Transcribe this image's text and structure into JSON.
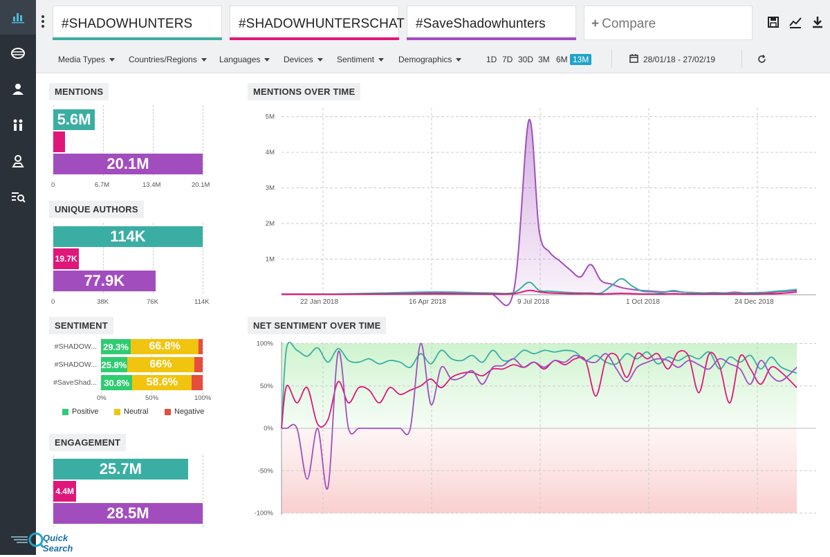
{
  "sidebar": {
    "icons": [
      "bar-chart-icon",
      "brain-icon",
      "user-icon",
      "people-icon",
      "location-user-icon",
      "list-search-icon"
    ]
  },
  "terms": [
    {
      "label": "#SHADOWHUNTERS",
      "color": "#3aaea3"
    },
    {
      "label": "#SHADOWHUNTERSCHAT",
      "color": "#e0177a"
    },
    {
      "label": "#SaveShadowhunters",
      "color": "#a24dbe"
    }
  ],
  "compare_label": "Compare",
  "filters": [
    "Media Types",
    "Countries/Regions",
    "Languages",
    "Devices",
    "Sentiment",
    "Demographics"
  ],
  "periods": [
    "1D",
    "7D",
    "30D",
    "3M",
    "6M",
    "13M"
  ],
  "active_period": "13M",
  "date_range": "28/01/18 - 27/02/19",
  "sections": {
    "mentions": "MENTIONS",
    "unique_authors": "UNIQUE AUTHORS",
    "sentiment": "SENTIMENT",
    "engagement": "ENGAGEMENT",
    "mentions_over_time": "MENTIONS OVER TIME",
    "net_sentiment": "NET SENTIMENT OVER TIME"
  },
  "mentions": {
    "bars": [
      {
        "label": "5.6M",
        "value": 5.6
      },
      {
        "label": "",
        "value": 1.6
      },
      {
        "label": "20.1M",
        "value": 20.1
      }
    ],
    "max": 20.1,
    "ticks": [
      "0",
      "6.7M",
      "13.4M",
      "20.1M"
    ]
  },
  "unique_authors": {
    "bars": [
      {
        "label": "114K",
        "value": 114
      },
      {
        "label": "19.7K",
        "value": 19.7
      },
      {
        "label": "77.9K",
        "value": 77.9
      }
    ],
    "max": 114,
    "ticks": [
      "0",
      "38K",
      "76K",
      "114K"
    ]
  },
  "sentiment": {
    "rows": [
      {
        "label": "#SHADOW...",
        "positive": 29.3,
        "neutral": 66.8,
        "negative": 3.9,
        "pos_label": "29.3%",
        "neu_label": "66.8%"
      },
      {
        "label": "#SHADOW...",
        "positive": 25.8,
        "neutral": 66,
        "negative": 8.2,
        "pos_label": "25.8%",
        "neu_label": "66%"
      },
      {
        "label": "#SaveShad...",
        "positive": 30.8,
        "neutral": 58.6,
        "negative": 10.6,
        "pos_label": "30.8%",
        "neu_label": "58.6%"
      }
    ],
    "ticks": [
      "0%",
      "50%",
      "100%"
    ],
    "legend": [
      {
        "label": "Positive",
        "color": "#2ecc71"
      },
      {
        "label": "Neutral",
        "color": "#f1c40f"
      },
      {
        "label": "Negative",
        "color": "#e74c3c"
      }
    ]
  },
  "engagement": {
    "bars": [
      {
        "label": "25.7M",
        "value": 25.7
      },
      {
        "label": "4.4M",
        "value": 4.4
      },
      {
        "label": "28.5M",
        "value": 28.5
      }
    ],
    "max": 28.5
  },
  "chart_data": [
    {
      "type": "area",
      "title": "MENTIONS OVER TIME",
      "y_ticks": [
        "1M",
        "2M",
        "3M",
        "4M",
        "5M"
      ],
      "x_ticks": [
        "22 Jan 2018",
        "16 Apr 2018",
        "9 Jul 2018",
        "1 Oct 2018",
        "24 Dec 2018"
      ],
      "ylim": [
        0,
        5
      ],
      "x": [
        0,
        10,
        20,
        30,
        40,
        45,
        48,
        50,
        52,
        54,
        56,
        58,
        60,
        62,
        64,
        66,
        68,
        70,
        72,
        74,
        76,
        78,
        80,
        82,
        84,
        86,
        88,
        90,
        92,
        94,
        96,
        98,
        100
      ],
      "series": [
        {
          "name": "#SaveShadowhunters",
          "color": "#a24dbe",
          "values": [
            0.02,
            0.02,
            0.03,
            0.05,
            0.05,
            0.06,
            4.9,
            1.8,
            1.2,
            0.95,
            0.7,
            0.5,
            0.85,
            0.4,
            0.3,
            0.2,
            0.15,
            0.12,
            0.1,
            0.08,
            0.1,
            0.07,
            0.06,
            0.05,
            0.06,
            0.05,
            0.07,
            0.05,
            0.06,
            0.05,
            0.08,
            0.1,
            0.12
          ]
        },
        {
          "name": "#SHADOWHUNTERS",
          "color": "#3aaea3",
          "values": [
            0.01,
            0.02,
            0.05,
            0.08,
            0.05,
            0.06,
            0.35,
            0.12,
            0.1,
            0.08,
            0.06,
            0.05,
            0.05,
            0.05,
            0.25,
            0.45,
            0.25,
            0.1,
            0.08,
            0.06,
            0.12,
            0.07,
            0.06,
            0.05,
            0.05,
            0.05,
            0.04,
            0.05,
            0.06,
            0.07,
            0.1,
            0.12,
            0.15
          ]
        },
        {
          "name": "#SHADOWHUNTERSCHAT",
          "color": "#e0177a",
          "values": [
            0.01,
            0.01,
            0.02,
            0.03,
            0.02,
            0.03,
            0.12,
            0.08,
            0.05,
            0.04,
            0.03,
            0.03,
            0.03,
            0.02,
            0.03,
            0.04,
            0.03,
            0.02,
            0.02,
            0.02,
            0.03,
            0.02,
            0.02,
            0.02,
            0.02,
            0.02,
            0.02,
            0.02,
            0.02,
            0.03,
            0.03,
            0.05,
            0.08
          ]
        }
      ]
    },
    {
      "type": "line",
      "title": "NET SENTIMENT OVER TIME",
      "y_ticks": [
        "100%",
        "50%",
        "0%",
        "-50%",
        "-100%"
      ],
      "ylim": [
        -100,
        100
      ],
      "x": [
        0,
        1,
        3,
        5,
        7,
        9,
        11,
        13,
        15,
        17,
        19,
        21,
        23,
        25,
        27,
        29,
        31,
        33,
        35,
        37,
        39,
        41,
        43,
        45,
        47,
        49,
        51,
        53,
        55,
        57,
        59,
        61,
        63,
        65,
        67,
        69,
        71,
        73,
        75,
        77,
        79,
        81,
        83,
        85,
        87,
        89,
        91,
        93,
        95,
        97,
        100
      ],
      "series": [
        {
          "name": "#SHADOWHUNTERS",
          "color": "#3aaea3",
          "values": [
            0,
            95,
            92,
            85,
            95,
            78,
            94,
            80,
            78,
            82,
            76,
            80,
            78,
            72,
            88,
            76,
            92,
            82,
            80,
            86,
            78,
            92,
            80,
            82,
            92,
            88,
            92,
            90,
            92,
            90,
            80,
            86,
            78,
            76,
            88,
            82,
            90,
            76,
            84,
            80,
            86,
            82,
            90,
            70,
            84,
            78,
            86,
            70,
            84,
            72,
            65
          ]
        },
        {
          "name": "#SHADOWHUNTERSCHAT",
          "color": "#e0177a",
          "values": [
            0,
            50,
            30,
            48,
            5,
            10,
            55,
            30,
            48,
            45,
            30,
            48,
            40,
            45,
            50,
            58,
            48,
            60,
            65,
            66,
            62,
            70,
            70,
            75,
            72,
            78,
            70,
            80,
            75,
            82,
            80,
            38,
            82,
            86,
            60,
            88,
            82,
            88,
            70,
            90,
            85,
            42,
            88,
            74,
            30,
            85,
            70,
            52,
            72,
            66,
            48
          ]
        },
        {
          "name": "#SaveShadowhunters",
          "color": "#a24dbe",
          "values": [
            0,
            0,
            0,
            -60,
            0,
            -70,
            90,
            0,
            0,
            0,
            0,
            0,
            0,
            0,
            100,
            28,
            72,
            58,
            60,
            68,
            52,
            72,
            74,
            82,
            72,
            78,
            72,
            80,
            78,
            86,
            80,
            78,
            88,
            70,
            55,
            72,
            78,
            82,
            80,
            72,
            80,
            75,
            70,
            82,
            76,
            70,
            52,
            80,
            62,
            56,
            72
          ]
        }
      ]
    }
  ],
  "quick_search": "Quick Search"
}
